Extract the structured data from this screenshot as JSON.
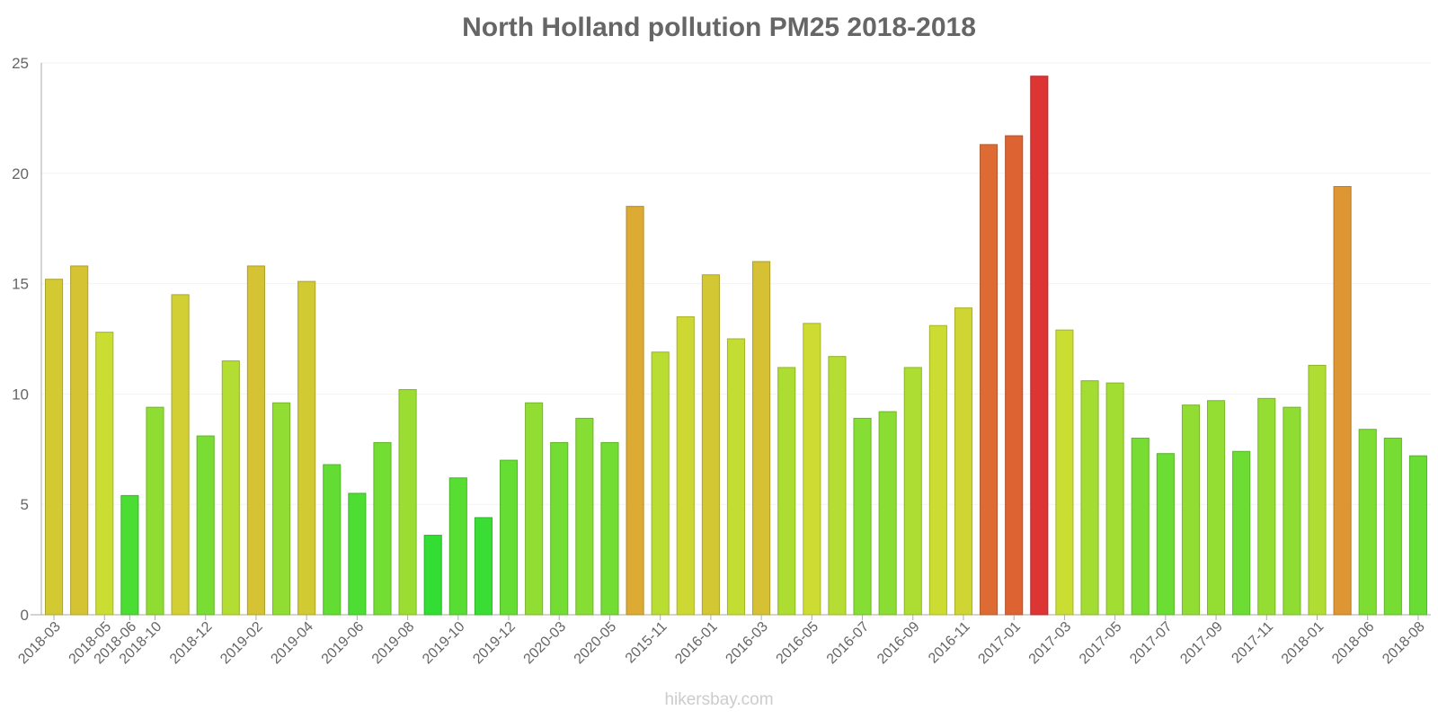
{
  "chart_data": {
    "type": "bar",
    "title": "North Holland pollution PM25 2018-2018",
    "xlabel": "",
    "ylabel": "",
    "ylim": [
      0,
      25
    ],
    "yticks": [
      "0",
      "5",
      "10",
      "15",
      "20",
      "25"
    ],
    "grid": true,
    "categories": [
      "2018-03",
      "2018-04",
      "2018-05",
      "2018-06",
      "2018-10",
      "2018-11",
      "2018-12",
      "2019-01",
      "2019-02",
      "2019-03",
      "2019-04",
      "2019-05",
      "2019-06",
      "2019-07",
      "2019-08",
      "2019-09",
      "2019-10",
      "2019-11",
      "2019-12",
      "2020-01",
      "2020-03",
      "2020-04",
      "2020-05",
      "2020-06",
      "2015-11",
      "2015-12",
      "2016-01",
      "2016-02",
      "2016-03",
      "2016-04",
      "2016-05",
      "2016-06",
      "2016-07",
      "2016-08",
      "2016-09",
      "2016-10",
      "2016-11",
      "2016-12",
      "2017-01",
      "2017-02",
      "2017-03",
      "2017-04",
      "2017-05",
      "2017-06",
      "2017-07",
      "2017-08",
      "2017-09",
      "2017-10",
      "2017-11",
      "2017-12",
      "2018-01",
      "2018-02",
      "2018-06",
      "2018-07",
      "2018-08"
    ],
    "labeled_categories": [
      "2018-03",
      "2018-05",
      "2018-10",
      "2018-12",
      "2019-02",
      "2019-04",
      "2019-06",
      "2019-08",
      "2019-10",
      "2019-12",
      "2020-03",
      "2020-05",
      "2015-11",
      "2016-01",
      "2016-03",
      "2016-05",
      "2016-07",
      "2016-09",
      "2016-11",
      "2017-01",
      "2017-03",
      "2017-05",
      "2017-07",
      "2017-09",
      "2017-11",
      "2018-01",
      "2018-06",
      "2018-08"
    ],
    "series": [
      {
        "name": "PM25",
        "values": [
          15.2,
          15.8,
          12.8,
          5.4,
          9.4,
          14.5,
          8.1,
          11.5,
          15.8,
          9.6,
          15.1,
          6.8,
          5.5,
          7.8,
          10.2,
          3.6,
          6.2,
          4.4,
          7.0,
          9.6,
          7.8,
          8.9,
          7.8,
          18.5,
          11.9,
          13.5,
          15.4,
          12.5,
          16.0,
          11.2,
          13.2,
          11.7,
          8.9,
          9.2,
          11.2,
          13.1,
          13.9,
          21.3,
          21.7,
          24.4,
          12.9,
          10.6,
          10.5,
          8.0,
          7.3,
          9.5,
          9.7,
          7.4,
          9.8,
          9.4,
          11.3,
          19.4,
          8.4,
          8.0,
          7.2
        ]
      }
    ],
    "color_scale": [
      "#33dd33",
      "#ccdd33",
      "#ddaa33",
      "#dd6633",
      "#dd3333"
    ]
  },
  "watermark": "hikersbay.com"
}
